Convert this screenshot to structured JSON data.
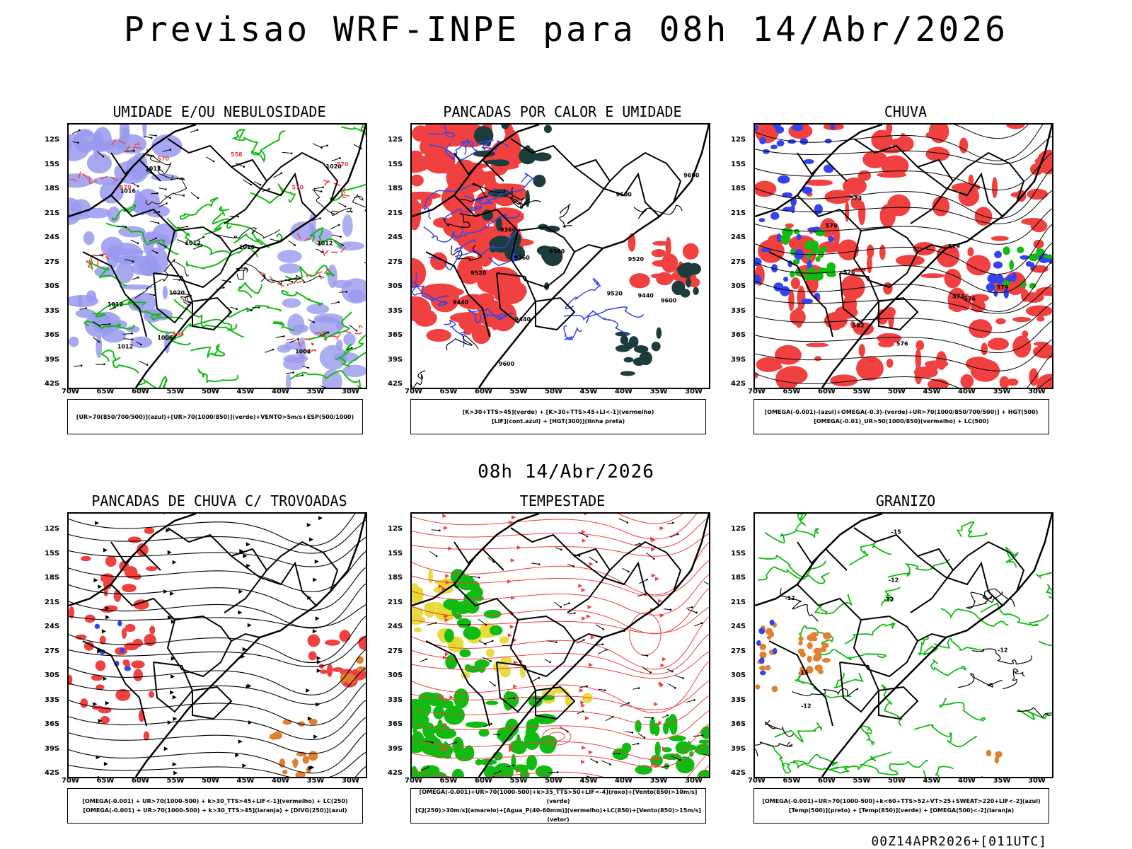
{
  "title": "Previsao WRF-INPE  para 08h 14/Abr/2026",
  "subtitle": "08h 14/Abr/2026",
  "footer": "00Z14APR2026+[011UTC]",
  "lat_labels": [
    "12S",
    "15S",
    "18S",
    "21S",
    "24S",
    "27S",
    "30S",
    "33S",
    "36S",
    "39S",
    "42S"
  ],
  "lon_labels": [
    "70W",
    "65W",
    "60W",
    "55W",
    "50W",
    "45W",
    "40W",
    "35W",
    "30W"
  ],
  "colors": {
    "red": "#f04040",
    "green": "#11bb11",
    "blue": "#3344ee",
    "lavender": "#9999ee",
    "yellow": "#e6d830",
    "orange": "#e08030",
    "darkteal": "#1d3d3d"
  },
  "panels": [
    {
      "title": "UMIDADE E/OU NEBULOSIDADE",
      "legend": [
        "[UR>70(850/700/500)](azul)+[UR>70(1000/850)](verde)+VENTO>5m/s+ESP(500/1000)"
      ],
      "labels": [
        "1012",
        "1012",
        "1012",
        "1008",
        "1012",
        "1016",
        "1016",
        "1006",
        "1020",
        "1020",
        "570",
        "570",
        "570",
        "570",
        "564",
        "558",
        "1012"
      ]
    },
    {
      "title": "PANCADAS POR CALOR E UMIDADE",
      "legend": [
        "[K>30+TTS>45](verde) + [K>30+TTS>45+LI<-1](vermelho)",
        "[LIF](cont.azul) + [HGT(300)](linha preta)"
      ],
      "labels": [
        "9600",
        "9520",
        "9360",
        "9440",
        "9600",
        "9600",
        "9520",
        "9600",
        "9520",
        "9440",
        "9360",
        "9440",
        "9360"
      ]
    },
    {
      "title": "CHUVA",
      "legend": [
        "[OMEGA(-0.001)-(azul)+OMEGA(-0.3)-(verde)+UR>70(1000/850/700/500)] + HGT(500)",
        "[OMEGA(-0.01)_UR>50(1000/850)(vermelho) + LC(500)"
      ],
      "labels": [
        "582",
        "576",
        "576",
        "579",
        "573",
        "573",
        "576",
        "579",
        "576"
      ]
    },
    {
      "title": "PANCADAS DE CHUVA C/ TROVOADAS",
      "legend": [
        "[OMEGA(-0.001) + UR>70(1000-500) + k>30_TTS>45+LIF<-1](vermelho) + LC(250)",
        "[OMEGA(-0.001) + UR>70(1000-500) + k>30_TTS>45](laranja) + [DIVG(250)](azul)"
      ],
      "labels": []
    },
    {
      "title": "TEMPESTADE",
      "legend": [
        "[OMEGA(-0.001)+UR>70(1000-500)+k>35_TTS>50+LIF<-4](roxo)+[Vento(850)>10m/s](verde)",
        "[CJ(250)>30m/s](amarelo)+[Agua_P(40-60mm)](vermelho)+LC(850)+[Vento(850)>15m/s](vetor)"
      ],
      "labels": []
    },
    {
      "title": "GRANIZO",
      "legend": [
        "[OMEGA(-0.001)+UR>70(1000-500)+k<60+TTS>52+VT>25+SWEAT>220+LIF<-2](azul)",
        "[Temp(500)](preto) + [Temp(850)](verde) + [OMEGA(500)<-2](laranja)"
      ],
      "labels": [
        "-12",
        "-12",
        "-12",
        "-12",
        "-15",
        "-12",
        "-15"
      ]
    }
  ]
}
